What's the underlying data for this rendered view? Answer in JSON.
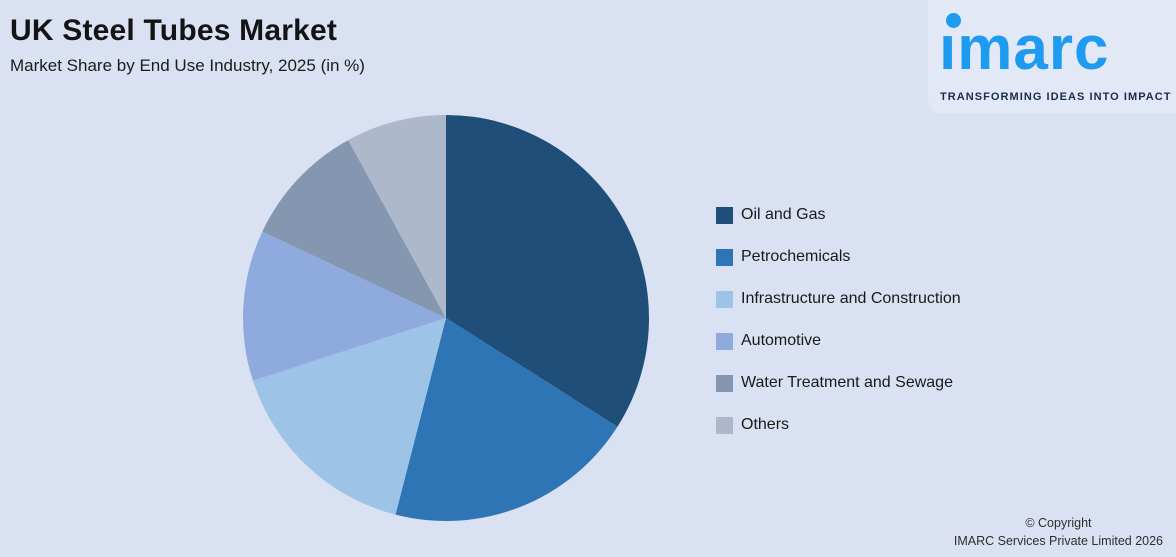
{
  "page": {
    "background": "#D9E1F2"
  },
  "header": {
    "title": "UK Steel Tubes Market",
    "subtitle": "Market Share by End Use Industry, 2025 (in %)"
  },
  "logo": {
    "wordmark": "ımarc",
    "tagline": "TRANSFORMING IDEAS INTO IMPACT",
    "brand_color": "#1E9BF0",
    "tagline_color": "#1B2B4B",
    "panel_color": "#E2E8F5"
  },
  "chart_data": {
    "type": "pie",
    "title": "UK Steel Tubes Market",
    "subtitle": "Market Share by End Use Industry, 2025 (in %)",
    "unit": "%",
    "start_angle_deg": 0,
    "direction": "clockwise",
    "legend_position": "right",
    "data_labels_shown": false,
    "slices": [
      {
        "label": "Oil and Gas",
        "value": 34,
        "color": "#1F4E79"
      },
      {
        "label": "Petrochemicals",
        "value": 20,
        "color": "#2E75B6"
      },
      {
        "label": "Infrastructure and Construction",
        "value": 16,
        "color": "#9DC3E6"
      },
      {
        "label": "Automotive",
        "value": 12,
        "color": "#8FAADC"
      },
      {
        "label": "Water Treatment and Sewage",
        "value": 10,
        "color": "#8496B0"
      },
      {
        "label": "Others",
        "value": 8,
        "color": "#ADB9CA"
      }
    ]
  },
  "footer": {
    "copyright_line1": "© Copyright",
    "copyright_line2": "IMARC Services Private Limited 2026"
  }
}
